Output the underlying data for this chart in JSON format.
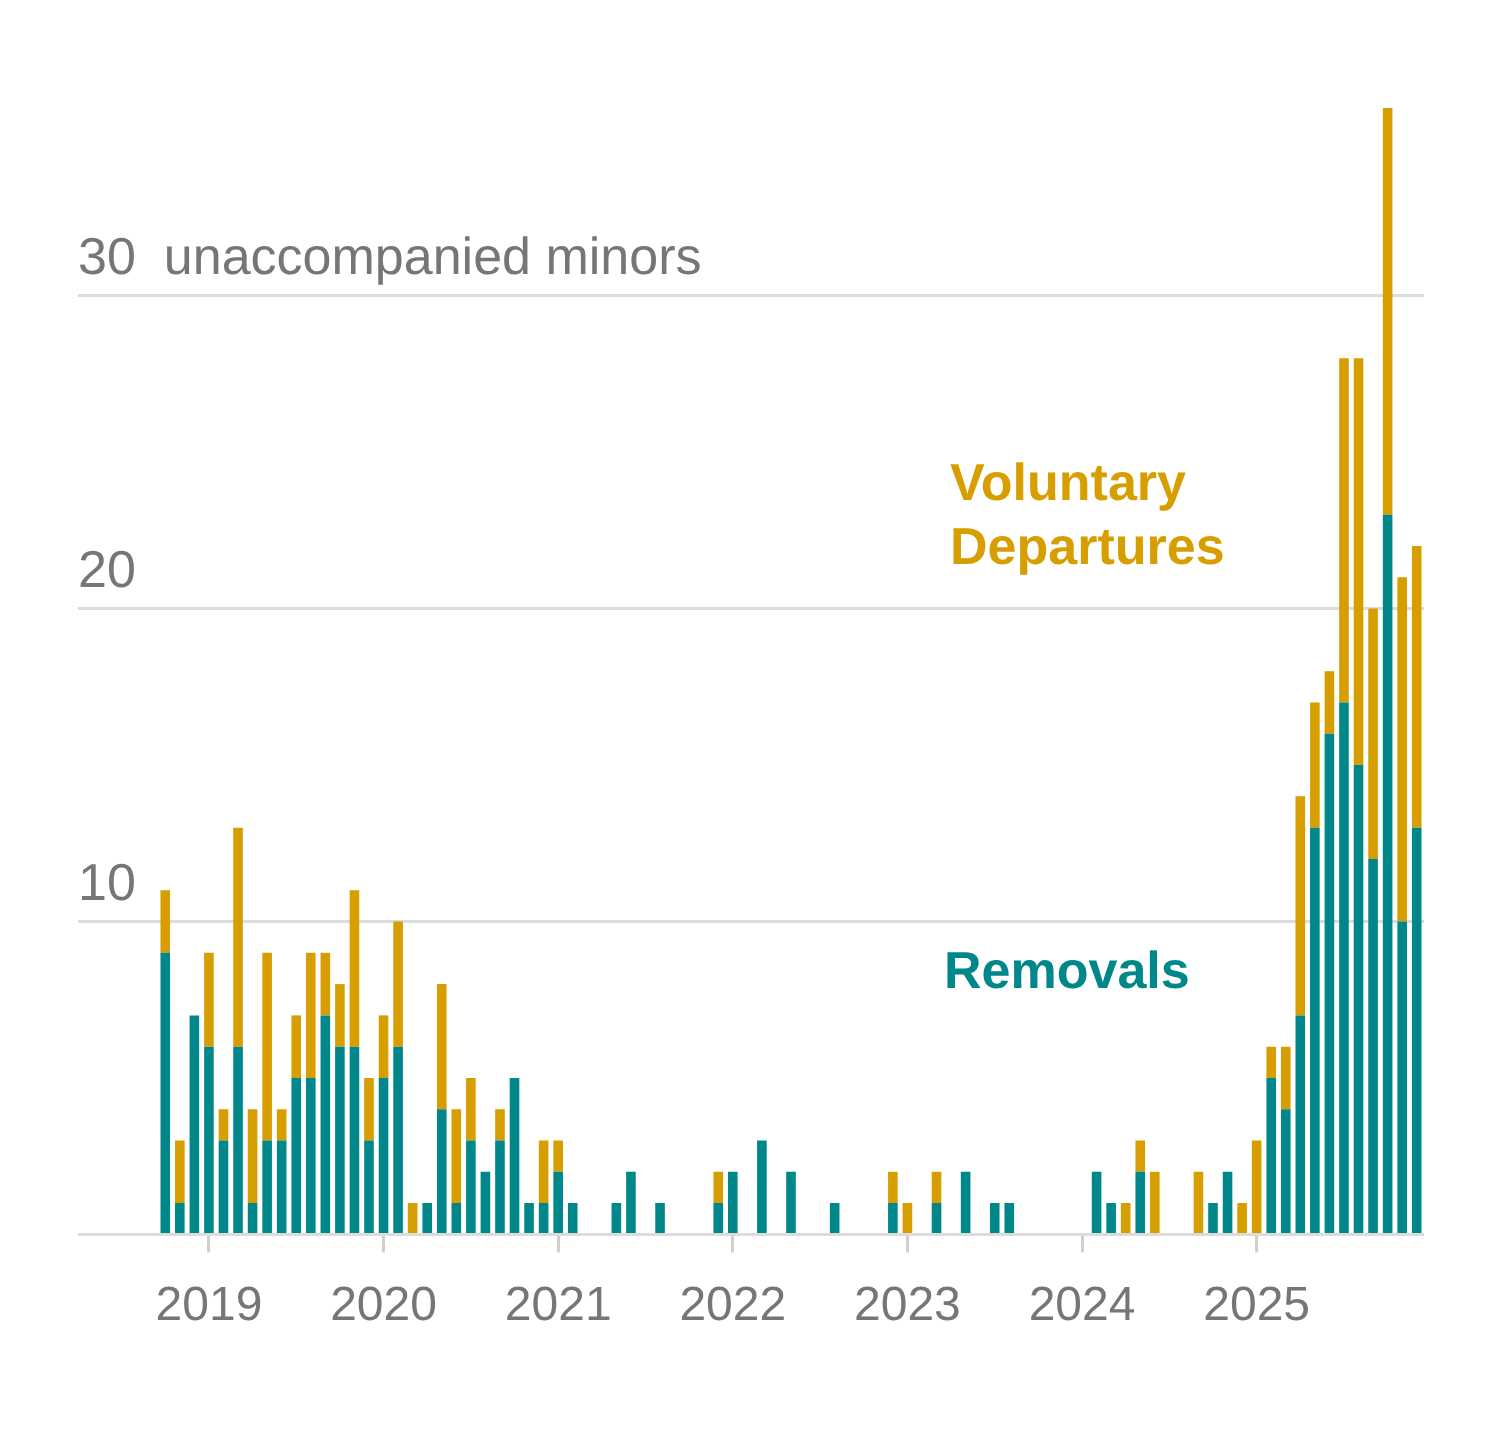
{
  "chart_data": {
    "type": "bar",
    "stacked": true,
    "ylabel": "unaccompanied minors",
    "categories": [
      null,
      null,
      null,
      "2019",
      null,
      null,
      null,
      null,
      null,
      null,
      null,
      null,
      null,
      null,
      null,
      "2020",
      null,
      null,
      null,
      null,
      null,
      null,
      null,
      null,
      null,
      null,
      null,
      "2021",
      null,
      null,
      null,
      null,
      null,
      null,
      null,
      null,
      null,
      null,
      null,
      "2022",
      null,
      null,
      null,
      null,
      null,
      null,
      null,
      null,
      null,
      null,
      null,
      "2023",
      null,
      null,
      null,
      null,
      null,
      null,
      null,
      null,
      null,
      null,
      null,
      "2024",
      null,
      null,
      null,
      null,
      null,
      null,
      null,
      null,
      null,
      null,
      null,
      "2025",
      null,
      null,
      null,
      null,
      null,
      null,
      null,
      null,
      null,
      null,
      null
    ],
    "series": [
      {
        "name": "Removals",
        "color": "#00878a",
        "values": [
          9,
          1,
          7,
          6,
          3,
          6,
          1,
          3,
          3,
          5,
          5,
          7,
          6,
          6,
          3,
          5,
          6,
          0,
          1,
          4,
          1,
          3,
          2,
          3,
          5,
          1,
          1,
          2,
          1,
          0,
          0,
          1,
          2,
          0,
          1,
          0,
          0,
          0,
          1,
          2,
          0,
          3,
          0,
          2,
          0,
          0,
          1,
          0,
          0,
          0,
          1,
          0,
          0,
          1,
          0,
          2,
          0,
          1,
          1,
          0,
          0,
          0,
          0,
          0,
          2,
          1,
          0,
          2,
          0,
          0,
          0,
          0,
          1,
          2,
          0,
          0,
          5,
          4,
          7,
          13,
          16,
          17,
          15,
          12,
          23,
          10,
          13
        ]
      },
      {
        "name": "Voluntary Departures",
        "color": "#d69e00",
        "values": [
          2,
          2,
          0,
          3,
          1,
          7,
          3,
          6,
          1,
          2,
          4,
          2,
          2,
          5,
          2,
          2,
          4,
          1,
          0,
          4,
          3,
          2,
          0,
          1,
          0,
          0,
          2,
          1,
          0,
          0,
          0,
          0,
          0,
          0,
          0,
          0,
          0,
          0,
          1,
          0,
          0,
          0,
          0,
          0,
          0,
          0,
          0,
          0,
          0,
          0,
          1,
          1,
          0,
          1,
          0,
          0,
          0,
          0,
          0,
          0,
          0,
          0,
          0,
          0,
          0,
          0,
          1,
          1,
          2,
          0,
          0,
          2,
          0,
          0,
          1,
          3,
          1,
          2,
          7,
          4,
          2,
          11,
          13,
          8,
          13,
          11,
          9
        ]
      }
    ],
    "ylim": [
      0,
      36
    ],
    "yticks": [
      {
        "value": 0,
        "label": null
      },
      10,
      20,
      30
    ],
    "grid": "y"
  }
}
